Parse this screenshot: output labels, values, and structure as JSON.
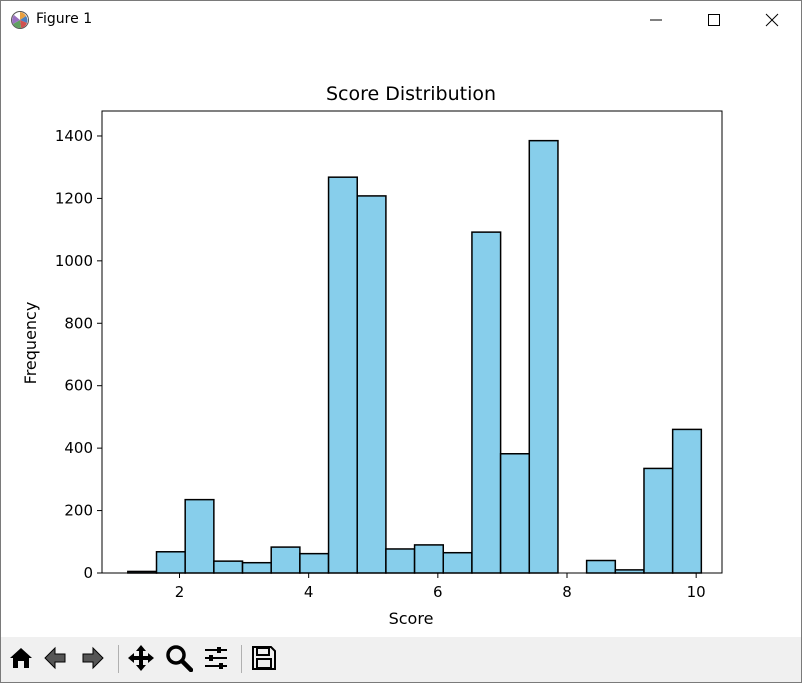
{
  "window": {
    "title": "Figure 1",
    "icon": "matplotlib-icon",
    "controls": [
      "minimize-icon",
      "maximize-icon",
      "close-icon"
    ]
  },
  "toolbar": {
    "buttons": [
      "home-icon",
      "back-icon",
      "forward-icon",
      "pan-icon",
      "zoom-icon",
      "configure-subplots-icon",
      "save-icon"
    ]
  },
  "chart_data": {
    "type": "bar",
    "title": "Score Distribution",
    "xlabel": "Score",
    "ylabel": "Frequency",
    "xlim": [
      0.8,
      10.4
    ],
    "ylim": [
      0,
      1480
    ],
    "xticks": [
      2,
      4,
      6,
      8,
      10
    ],
    "yticks": [
      0,
      200,
      400,
      600,
      800,
      1000,
      1200,
      1400
    ],
    "bin_edges": [
      1.2,
      1.644,
      2.088,
      2.532,
      2.976,
      3.42,
      3.864,
      4.308,
      4.752,
      5.196,
      5.64,
      6.084,
      6.528,
      6.972,
      7.416,
      7.86,
      8.304,
      8.748,
      9.192,
      9.636,
      10.08
    ],
    "values": [
      5,
      68,
      235,
      38,
      33,
      83,
      62,
      1268,
      1208,
      77,
      90,
      65,
      1092,
      382,
      1385,
      0,
      40,
      10,
      335,
      460
    ],
    "bar_color": "#87ceeb",
    "edge_color": "#000000",
    "grid": false,
    "legend": "none"
  }
}
